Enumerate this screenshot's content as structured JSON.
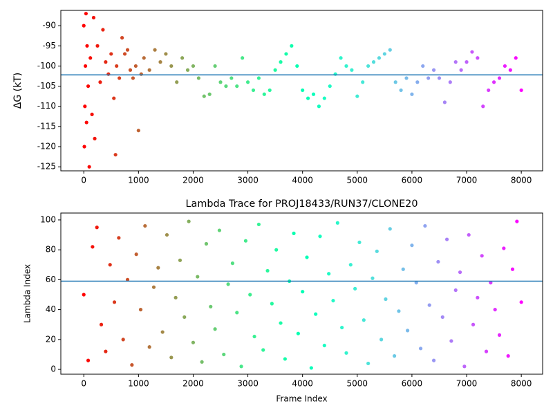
{
  "chart_data": [
    {
      "type": "scatter",
      "ylabel": "ΔG (kT)",
      "colormap": "rainbow_r",
      "hline": -102.2,
      "hline_color": "#1f77b4",
      "xlim": [
        -420,
        8390
      ],
      "ylim": [
        -126,
        -86.2
      ],
      "xticks": [
        0,
        1000,
        2000,
        3000,
        4000,
        5000,
        6000,
        7000,
        8000
      ],
      "yticks": [
        -125,
        -120,
        -115,
        -110,
        -105,
        -100,
        -95,
        -90
      ],
      "x": [
        0,
        10,
        20,
        30,
        40,
        50,
        60,
        80,
        100,
        120,
        150,
        180,
        200,
        250,
        300,
        350,
        400,
        450,
        500,
        550,
        580,
        600,
        650,
        700,
        750,
        800,
        850,
        900,
        950,
        1000,
        1050,
        1100,
        1200,
        1300,
        1400,
        1500,
        1600,
        1700,
        1800,
        1900,
        2000,
        2100,
        2200,
        2300,
        2400,
        2500,
        2600,
        2700,
        2800,
        2900,
        3000,
        3100,
        3200,
        3300,
        3400,
        3500,
        3600,
        3700,
        3800,
        3900,
        4000,
        4100,
        4200,
        4300,
        4400,
        4500,
        4600,
        4700,
        4800,
        4900,
        5000,
        5100,
        5200,
        5300,
        5400,
        5500,
        5600,
        5700,
        5800,
        5900,
        6000,
        6100,
        6200,
        6300,
        6400,
        6500,
        6600,
        6700,
        6800,
        6900,
        7000,
        7100,
        7200,
        7300,
        7400,
        7500,
        7600,
        7700,
        7800,
        7900,
        8000
      ],
      "values": [
        -90,
        -120,
        -110,
        -100,
        -87,
        -114,
        -95,
        -105,
        -125,
        -98,
        -112,
        -88,
        -118,
        -95,
        -104,
        -91,
        -99,
        -102,
        -97,
        -108,
        -122,
        -100,
        -103,
        -93,
        -97,
        -96,
        -101,
        -103,
        -100,
        -116,
        -102,
        -98,
        -101,
        -96,
        -99,
        -97,
        -100,
        -104,
        -98,
        -101,
        -100,
        -103,
        -107.5,
        -107,
        -100,
        -104,
        -105,
        -103,
        -105,
        -98,
        -104,
        -106,
        -103,
        -107,
        -106,
        -101,
        -99,
        -97,
        -95,
        -100,
        -106,
        -108,
        -107,
        -110,
        -108,
        -105,
        -102,
        -98,
        -100,
        -101,
        -107.5,
        -104,
        -100,
        -99,
        -98,
        -97,
        -96,
        -104,
        -106,
        -103,
        -107,
        -104,
        -100,
        -103,
        -101,
        -103,
        -109,
        -104,
        -99,
        -101,
        -99,
        -96.5,
        -98,
        -110,
        -106,
        -104,
        -103,
        -100,
        -101,
        -98,
        -106
      ]
    },
    {
      "type": "scatter",
      "title": "Lambda Trace for PROJ18433/RUN37/CLONE20",
      "xlabel": "Frame Index",
      "ylabel": "Lambda Index",
      "colormap": "rainbow_r",
      "hline": 59,
      "hline_color": "#1f77b4",
      "xlim": [
        -420,
        8390
      ],
      "ylim": [
        -3.2,
        104.6
      ],
      "xticks": [
        0,
        1000,
        2000,
        3000,
        4000,
        5000,
        6000,
        7000,
        8000
      ],
      "yticks": [
        0,
        20,
        40,
        60,
        80,
        100
      ],
      "x": [
        0,
        80,
        160,
        240,
        320,
        400,
        480,
        560,
        640,
        720,
        800,
        880,
        960,
        1040,
        1120,
        1200,
        1280,
        1360,
        1440,
        1520,
        1600,
        1680,
        1760,
        1840,
        1920,
        2000,
        2080,
        2160,
        2240,
        2320,
        2400,
        2480,
        2560,
        2640,
        2720,
        2800,
        2880,
        2960,
        3040,
        3120,
        3200,
        3280,
        3360,
        3440,
        3520,
        3600,
        3680,
        3760,
        3840,
        3920,
        4000,
        4080,
        4160,
        4240,
        4320,
        4400,
        4480,
        4560,
        4640,
        4720,
        4800,
        4880,
        4960,
        5040,
        5120,
        5200,
        5280,
        5360,
        5440,
        5520,
        5600,
        5680,
        5760,
        5840,
        5920,
        6000,
        6080,
        6160,
        6240,
        6320,
        6400,
        6480,
        6560,
        6640,
        6720,
        6800,
        6880,
        6960,
        7040,
        7120,
        7200,
        7280,
        7360,
        7440,
        7520,
        7600,
        7680,
        7760,
        7840,
        7920,
        8000
      ],
      "values": [
        50,
        6,
        82,
        95,
        30,
        12,
        70,
        45,
        88,
        20,
        60,
        3,
        77,
        40,
        96,
        15,
        55,
        68,
        25,
        90,
        8,
        48,
        73,
        35,
        99,
        18,
        62,
        5,
        84,
        42,
        27,
        93,
        10,
        57,
        71,
        38,
        2,
        86,
        50,
        22,
        97,
        13,
        66,
        44,
        80,
        31,
        7,
        59,
        91,
        24,
        52,
        75,
        1,
        37,
        89,
        16,
        64,
        46,
        98,
        28,
        11,
        70,
        54,
        85,
        33,
        4,
        61,
        79,
        20,
        47,
        94,
        9,
        39,
        67,
        26,
        83,
        58,
        14,
        96,
        43,
        6,
        72,
        35,
        87,
        19,
        53,
        65,
        2,
        90,
        30,
        48,
        76,
        12,
        58,
        40,
        23,
        81,
        9,
        67,
        99,
        45
      ]
    }
  ]
}
